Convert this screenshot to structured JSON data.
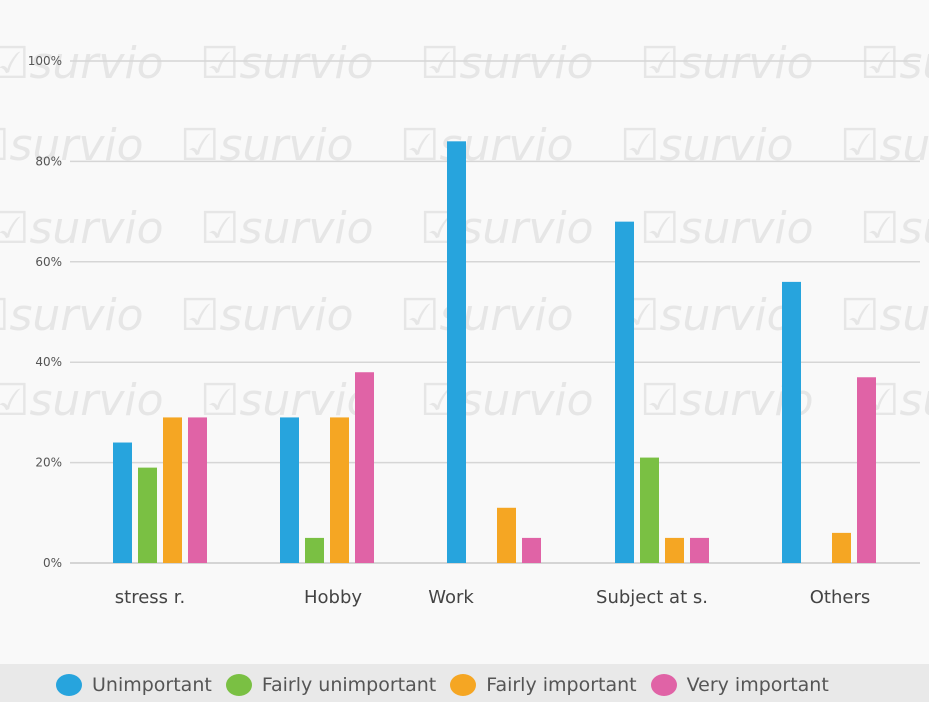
{
  "chart_data": {
    "type": "bar",
    "categories": [
      "stress r.",
      "Hobby",
      "Work",
      "Subject at s.",
      "Others"
    ],
    "series": [
      {
        "name": "Unimportant",
        "color": "#27a4dd",
        "values": [
          24,
          29,
          84,
          68,
          56
        ]
      },
      {
        "name": "Fairly unimportant",
        "color": "#7ac043",
        "values": [
          19,
          5,
          0,
          21,
          0
        ]
      },
      {
        "name": "Fairly important",
        "color": "#f5a623",
        "values": [
          29,
          29,
          11,
          5,
          6
        ]
      },
      {
        "name": "Very important",
        "color": "#e063a6",
        "values": [
          29,
          38,
          5,
          5,
          37
        ]
      }
    ],
    "ylim": [
      0,
      100
    ],
    "yticks": [
      "0%",
      "20%",
      "40%",
      "60%",
      "80%",
      "100%"
    ],
    "ytick_values": [
      0,
      20,
      40,
      60,
      80,
      100
    ],
    "grid": true,
    "legend_position": "bottom",
    "watermark": "survio"
  }
}
